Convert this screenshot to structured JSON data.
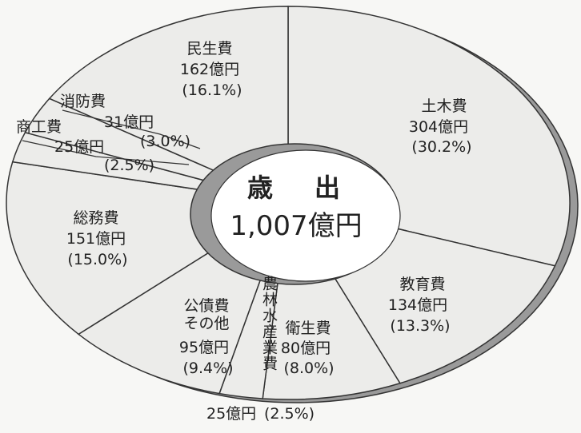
{
  "chart_data": {
    "type": "pie",
    "donut": true,
    "title": "歳　出",
    "total_label": "1,007億円",
    "categories": [
      "土木費",
      "教育費",
      "衛生費",
      "農林水産業費",
      "公債費その他",
      "総務費",
      "商工費",
      "消防費",
      "民生費"
    ],
    "values": [
      304,
      134,
      80,
      25,
      95,
      151,
      25,
      31,
      162
    ],
    "value_labels": [
      "304億円",
      "134億円",
      "80億円",
      "25億円",
      "95億円",
      "151億円",
      "25億円",
      "31億円",
      "162億円"
    ],
    "percent_labels": [
      "(30.2%)",
      "(13.3%)",
      "(8.0%)",
      "(2.5%)",
      "(9.4%)",
      "(15.0%)",
      "(2.5%)",
      "(3.0%)",
      "(16.1%)"
    ],
    "color": "#ececea",
    "edge_color": "#333333"
  }
}
